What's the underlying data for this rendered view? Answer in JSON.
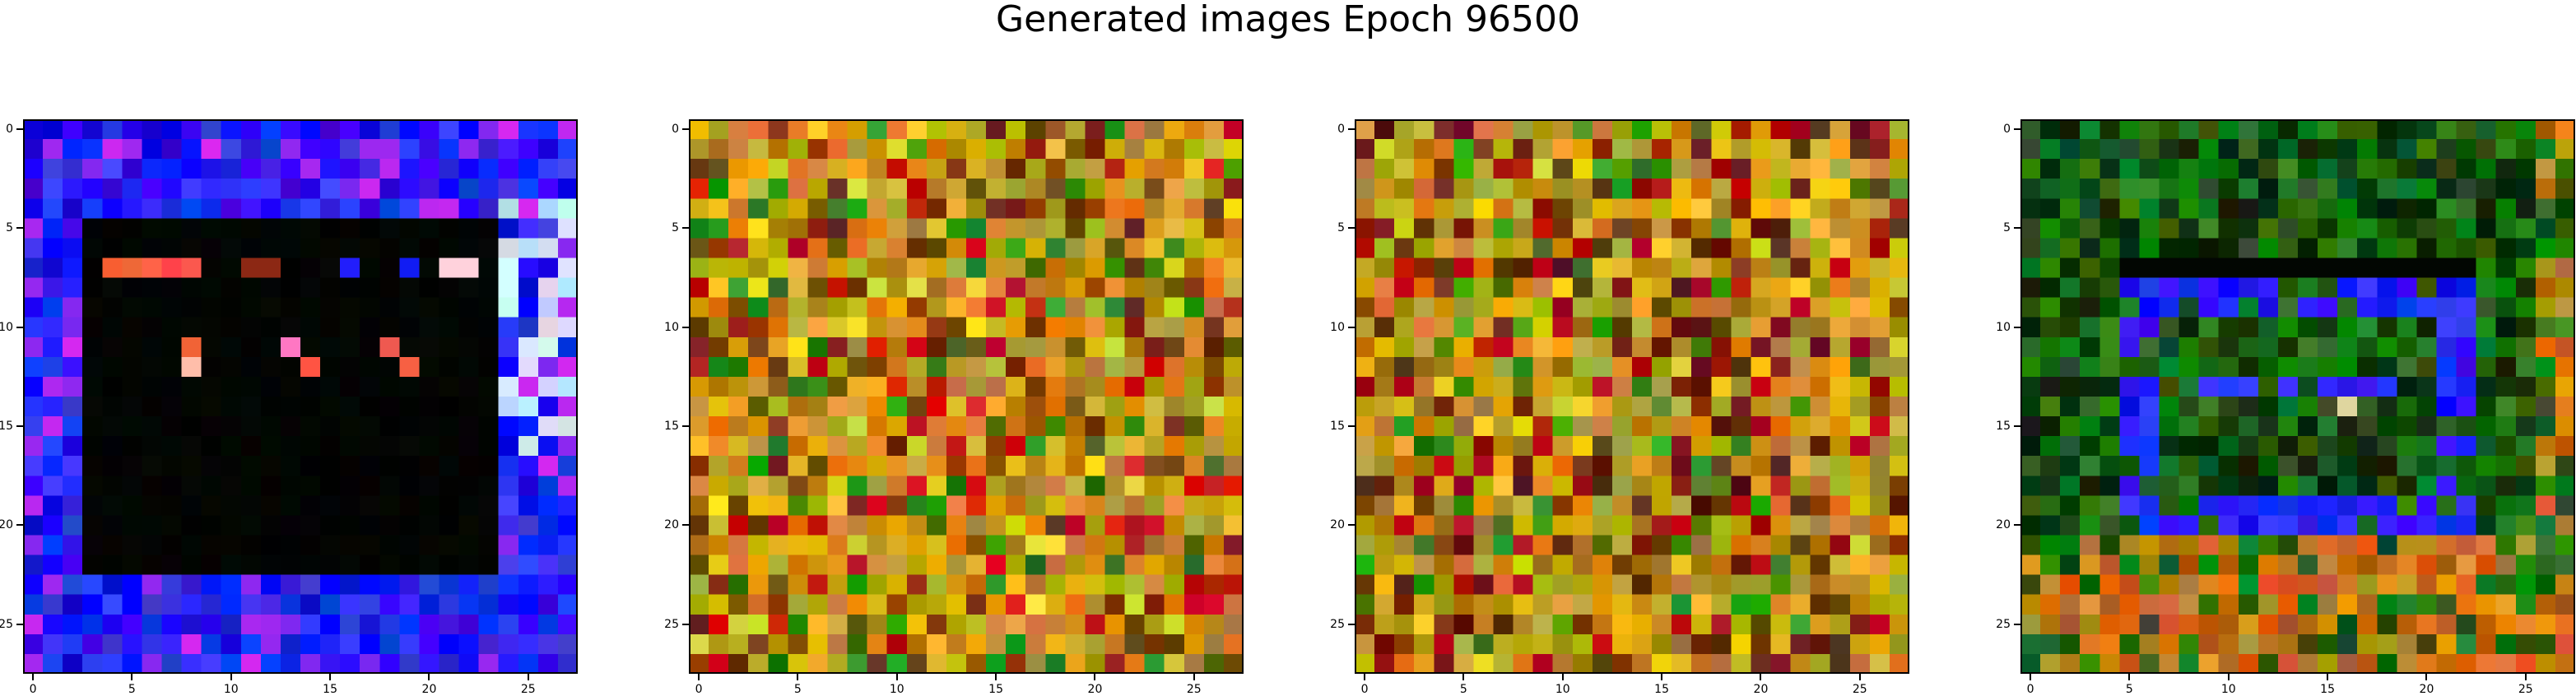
{
  "figure": {
    "title": "Generated images Epoch 96500"
  },
  "axes": {
    "x_ticks": [
      "0",
      "5",
      "10",
      "15",
      "20",
      "25"
    ],
    "y_ticks": [
      "0",
      "5",
      "10",
      "15",
      "20",
      "25"
    ]
  },
  "images": [
    {
      "name": "generated-image-1",
      "style": "blue-frame-dark-center",
      "palette": {
        "dark": "#020502",
        "blue": "#1f1ff0",
        "light": "#c9e6ff",
        "red": "#ff5040",
        "pink": "#ff80b0"
      }
    },
    {
      "name": "generated-image-2",
      "style": "orange-noise",
      "palette": {
        "base": "#c8961e",
        "dark": "#7a3a06",
        "yellow": "#e6c828",
        "green": "#2e8a10",
        "red": "#c81414"
      }
    },
    {
      "name": "generated-image-3",
      "style": "orange-noise",
      "palette": {
        "base": "#c09420",
        "dark": "#6a2808",
        "yellow": "#e8c020",
        "green": "#3a9010",
        "red": "#b00c10"
      }
    },
    {
      "name": "generated-image-4",
      "style": "green-frame",
      "palette": {
        "dark": "#0a2a08",
        "green": "#1e6a12",
        "blue": "#2020ff",
        "orange": "#c87818",
        "light": "#d8d8a0"
      }
    }
  ]
}
